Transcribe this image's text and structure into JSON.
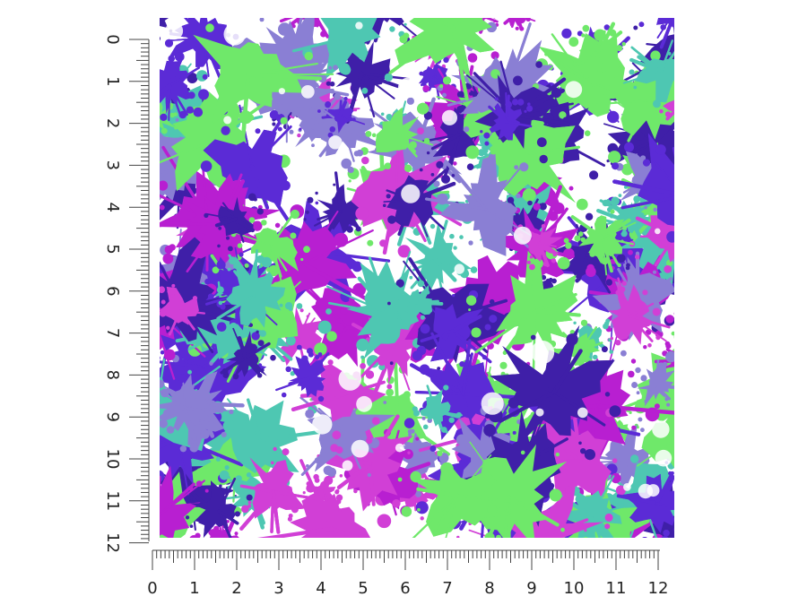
{
  "swatch": {
    "palette": [
      "#b81fd1",
      "#5b2bd6",
      "#3f1fa8",
      "#4ec7b2",
      "#6fe86a",
      "#8a7fd4",
      "#d13fd6",
      "#ffffff"
    ],
    "background": "#ffffff"
  },
  "ruler_vertical": {
    "labels": [
      "0",
      "1",
      "2",
      "3",
      "4",
      "5",
      "6",
      "7",
      "8",
      "9",
      "10",
      "11",
      "12"
    ]
  },
  "ruler_horizontal": {
    "labels": [
      "0",
      "1",
      "2",
      "3",
      "4",
      "5",
      "6",
      "7",
      "8",
      "9",
      "10",
      "11",
      "12"
    ]
  }
}
